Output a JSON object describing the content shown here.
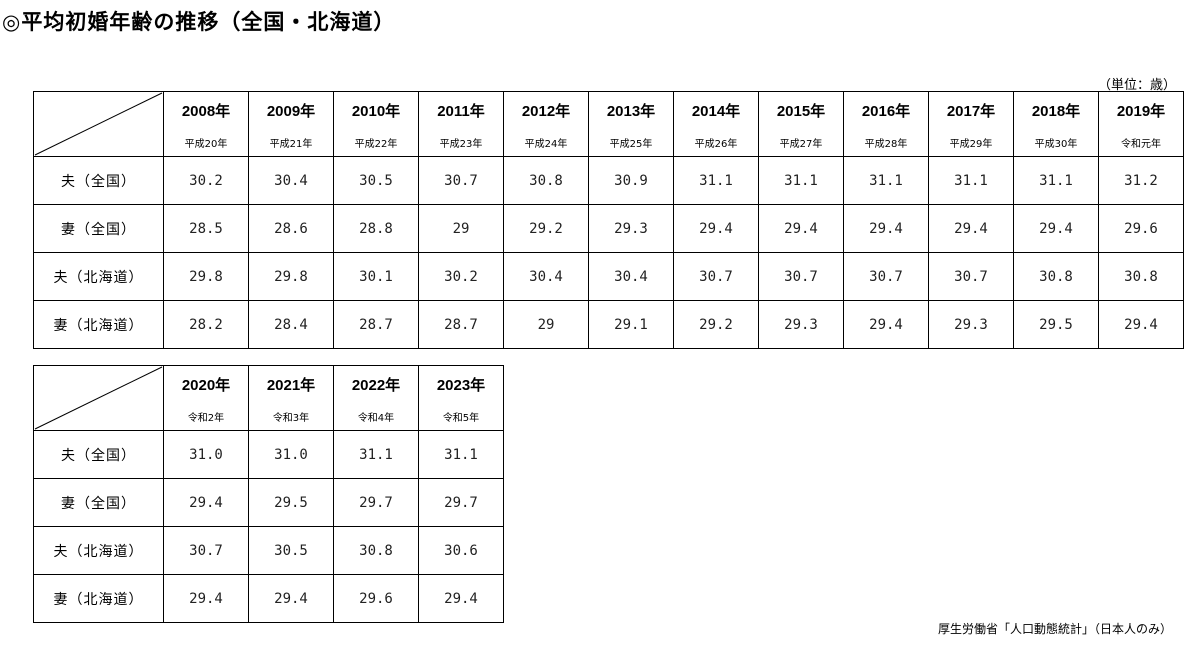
{
  "title": "◎平均初婚年齢の推移（全国・北海道）",
  "unit": "（単位：歳）",
  "source": "厚生労働省「人口動態統計」（日本人のみ）",
  "row_labels": [
    "夫（全国）",
    "妻（全国）",
    "夫（北海道）",
    "妻（北海道）"
  ],
  "table1": {
    "years": [
      "2008年",
      "2009年",
      "2010年",
      "2011年",
      "2012年",
      "2013年",
      "2014年",
      "2015年",
      "2016年",
      "2017年",
      "2018年",
      "2019年"
    ],
    "eras": [
      "平成20年",
      "平成21年",
      "平成22年",
      "平成23年",
      "平成24年",
      "平成25年",
      "平成26年",
      "平成27年",
      "平成28年",
      "平成29年",
      "平成30年",
      "令和元年"
    ],
    "rows": [
      [
        "30.2",
        "30.4",
        "30.5",
        "30.7",
        "30.8",
        "30.9",
        "31.1",
        "31.1",
        "31.1",
        "31.1",
        "31.1",
        "31.2"
      ],
      [
        "28.5",
        "28.6",
        "28.8",
        "29",
        "29.2",
        "29.3",
        "29.4",
        "29.4",
        "29.4",
        "29.4",
        "29.4",
        "29.6"
      ],
      [
        "29.8",
        "29.8",
        "30.1",
        "30.2",
        "30.4",
        "30.4",
        "30.7",
        "30.7",
        "30.7",
        "30.7",
        "30.8",
        "30.8"
      ],
      [
        "28.2",
        "28.4",
        "28.7",
        "28.7",
        "29",
        "29.1",
        "29.2",
        "29.3",
        "29.4",
        "29.3",
        "29.5",
        "29.4"
      ]
    ]
  },
  "table2": {
    "years": [
      "2020年",
      "2021年",
      "2022年",
      "2023年"
    ],
    "eras": [
      "令和2年",
      "令和3年",
      "令和4年",
      "令和5年"
    ],
    "rows": [
      [
        "31.0",
        "31.0",
        "31.1",
        "31.1"
      ],
      [
        "29.4",
        "29.5",
        "29.7",
        "29.7"
      ],
      [
        "30.7",
        "30.5",
        "30.8",
        "30.6"
      ],
      [
        "29.4",
        "29.4",
        "29.6",
        "29.4"
      ]
    ]
  }
}
